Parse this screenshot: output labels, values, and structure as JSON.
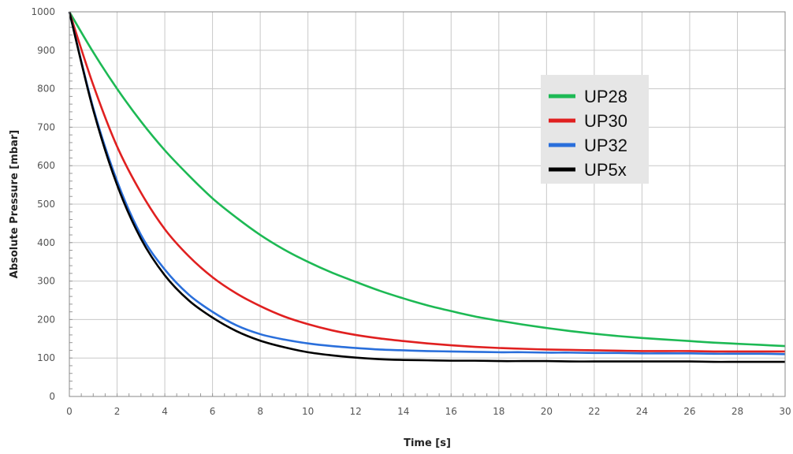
{
  "chart_data": {
    "type": "line",
    "xlabel": "Time [s]",
    "ylabel": "Absolute Pressure [mbar]",
    "xlim": [
      0,
      30
    ],
    "ylim": [
      0,
      1000
    ],
    "xticks": [
      0,
      2,
      4,
      6,
      8,
      10,
      12,
      14,
      16,
      18,
      20,
      22,
      24,
      26,
      28,
      30
    ],
    "yticks": [
      0,
      100,
      200,
      300,
      400,
      500,
      600,
      700,
      800,
      900,
      1000
    ],
    "grid": true,
    "legend_position": "top-right",
    "series": [
      {
        "name": "UP28",
        "color": "#1db954",
        "x": [
          0,
          1,
          2,
          3,
          4,
          5,
          6,
          7,
          8,
          9,
          10,
          11,
          12,
          13,
          14,
          15,
          16,
          17,
          18,
          19,
          20,
          21,
          22,
          23,
          24,
          25,
          26,
          27,
          28,
          29,
          30
        ],
        "y": [
          1000,
          895,
          800,
          715,
          640,
          575,
          515,
          465,
          420,
          382,
          350,
          322,
          298,
          275,
          255,
          237,
          222,
          208,
          197,
          187,
          178,
          170,
          163,
          157,
          152,
          148,
          144,
          140,
          137,
          134,
          131
        ]
      },
      {
        "name": "UP30",
        "color": "#e02020",
        "x": [
          0,
          1,
          2,
          3,
          4,
          5,
          6,
          7,
          8,
          9,
          10,
          11,
          12,
          13,
          14,
          15,
          16,
          17,
          18,
          19,
          20,
          21,
          22,
          23,
          24,
          25,
          26,
          27,
          28,
          29,
          30
        ],
        "y": [
          1000,
          810,
          650,
          530,
          435,
          365,
          310,
          268,
          235,
          208,
          188,
          172,
          160,
          151,
          144,
          138,
          133,
          129,
          126,
          124,
          122,
          121,
          120,
          119,
          118,
          118,
          118,
          117,
          117,
          117,
          117
        ]
      },
      {
        "name": "UP32",
        "color": "#2a6fdb",
        "x": [
          0,
          1,
          2,
          3,
          4,
          5,
          6,
          7,
          8,
          9,
          10,
          11,
          12,
          13,
          14,
          15,
          16,
          17,
          18,
          19,
          20,
          21,
          22,
          23,
          24,
          25,
          26,
          27,
          28,
          29,
          30
        ],
        "y": [
          1000,
          750,
          560,
          420,
          330,
          265,
          220,
          185,
          162,
          148,
          138,
          131,
          126,
          122,
          120,
          118,
          117,
          116,
          115,
          115,
          114,
          114,
          113,
          113,
          112,
          112,
          112,
          111,
          111,
          111,
          110
        ]
      },
      {
        "name": "UP5x",
        "color": "#000000",
        "x": [
          0,
          1,
          2,
          3,
          4,
          5,
          6,
          7,
          8,
          9,
          10,
          11,
          12,
          13,
          14,
          15,
          16,
          17,
          18,
          19,
          20,
          21,
          22,
          23,
          24,
          25,
          26,
          27,
          28,
          29,
          30
        ],
        "y": [
          1000,
          745,
          550,
          410,
          315,
          250,
          205,
          170,
          145,
          128,
          115,
          107,
          101,
          97,
          95,
          94,
          93,
          93,
          92,
          92,
          92,
          91,
          91,
          91,
          91,
          91,
          91,
          90,
          90,
          90,
          90
        ]
      }
    ]
  }
}
